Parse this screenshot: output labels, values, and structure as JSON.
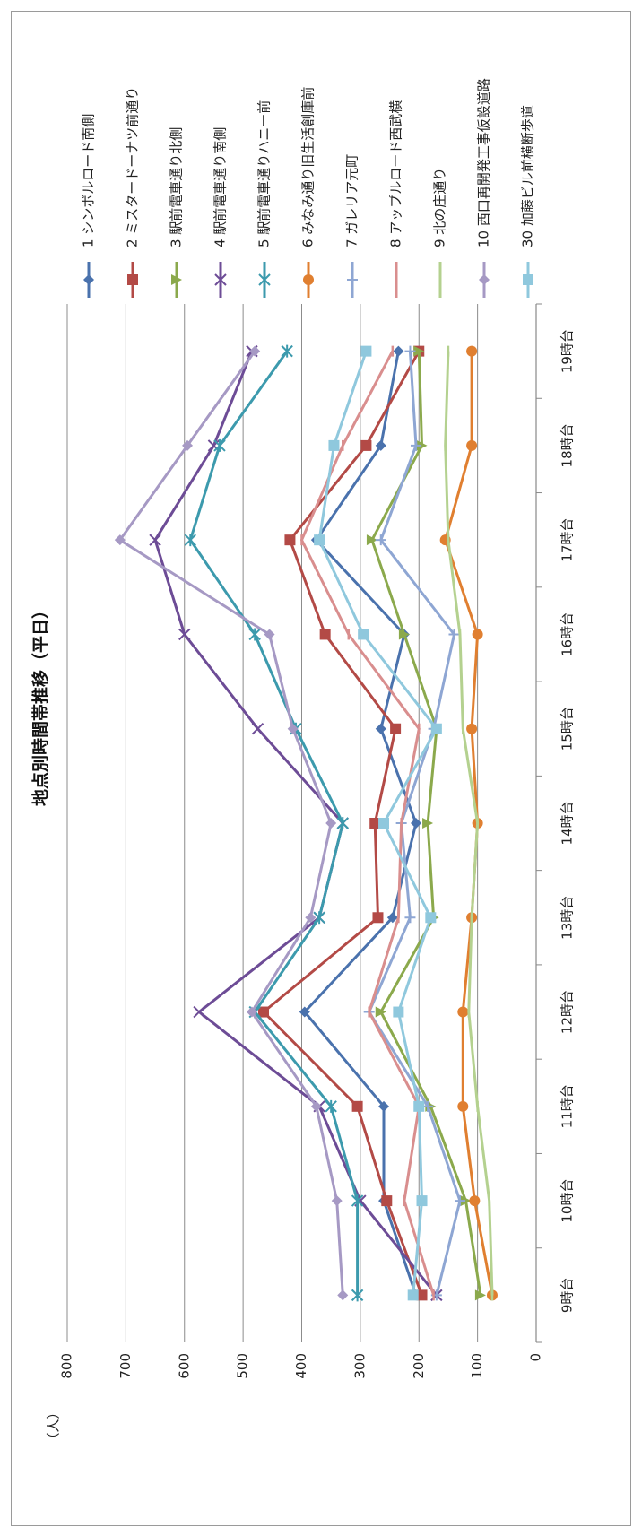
{
  "chart_data": {
    "type": "line",
    "title": "地点別時間帯推移（平日）",
    "ylabel": "（人）",
    "xlabel": "",
    "ylim": [
      0,
      800
    ],
    "yticks": [
      0,
      100,
      200,
      300,
      400,
      500,
      600,
      700,
      800
    ],
    "categories": [
      "9時台",
      "10時台",
      "11時台",
      "12時台",
      "13時台",
      "14時台",
      "15時台",
      "16時台",
      "17時台",
      "18時台",
      "19時台"
    ],
    "grid": true,
    "orientation": "rotated-90",
    "legend_position": "right",
    "series": [
      {
        "name": "1 シンボルロード南側",
        "marker": "diamond",
        "color": "#4a72ad",
        "values": [
          205,
          260,
          260,
          395,
          245,
          205,
          265,
          225,
          375,
          265,
          235
        ]
      },
      {
        "name": "2 ミスタードーナツ前通り",
        "marker": "square",
        "color": "#b34a46",
        "values": [
          195,
          255,
          305,
          465,
          270,
          275,
          240,
          360,
          420,
          290,
          200
        ]
      },
      {
        "name": "3 駅前電車通り北側",
        "marker": "triangle",
        "color": "#8ba94c",
        "values": [
          95,
          120,
          180,
          265,
          175,
          185,
          170,
          225,
          280,
          195,
          200
        ]
      },
      {
        "name": "4 駅前電車通り南側",
        "marker": "x",
        "color": "#6d4c96",
        "values": [
          170,
          300,
          370,
          575,
          370,
          330,
          475,
          600,
          650,
          550,
          485
        ]
      },
      {
        "name": "5 駅前電車通りハニー前",
        "marker": "star",
        "color": "#3c9aad",
        "values": [
          305,
          305,
          350,
          480,
          370,
          330,
          410,
          480,
          590,
          540,
          425
        ]
      },
      {
        "name": "6 みなみ通り旧生活創庫前",
        "marker": "circle",
        "color": "#e07f30",
        "values": [
          75,
          105,
          125,
          125,
          110,
          100,
          110,
          100,
          155,
          110,
          110
        ]
      },
      {
        "name": "7 ガレリア元町",
        "marker": "plus",
        "color": "#8ea6d3",
        "values": [
          170,
          130,
          185,
          285,
          215,
          230,
          175,
          140,
          265,
          205,
          215
        ]
      },
      {
        "name": "8 アップルロード西武横",
        "marker": "dash",
        "color": "#d98e8e",
        "values": [
          175,
          225,
          200,
          285,
          235,
          230,
          200,
          320,
          400,
          330,
          245
        ]
      },
      {
        "name": "9 北の庄通り",
        "marker": "dash",
        "color": "#b4d18f",
        "values": [
          75,
          80,
          100,
          115,
          110,
          100,
          125,
          130,
          150,
          155,
          150
        ]
      },
      {
        "name": "10 西口再開発工事仮設道路",
        "marker": "diamond",
        "color": "#a699c4",
        "values": [
          330,
          340,
          375,
          485,
          385,
          350,
          415,
          455,
          710,
          595,
          480
        ]
      },
      {
        "name": "30 加藤ビル前横断歩道",
        "marker": "square",
        "color": "#8fc8dd",
        "values": [
          210,
          195,
          200,
          235,
          180,
          260,
          170,
          295,
          370,
          345,
          290
        ]
      }
    ]
  }
}
